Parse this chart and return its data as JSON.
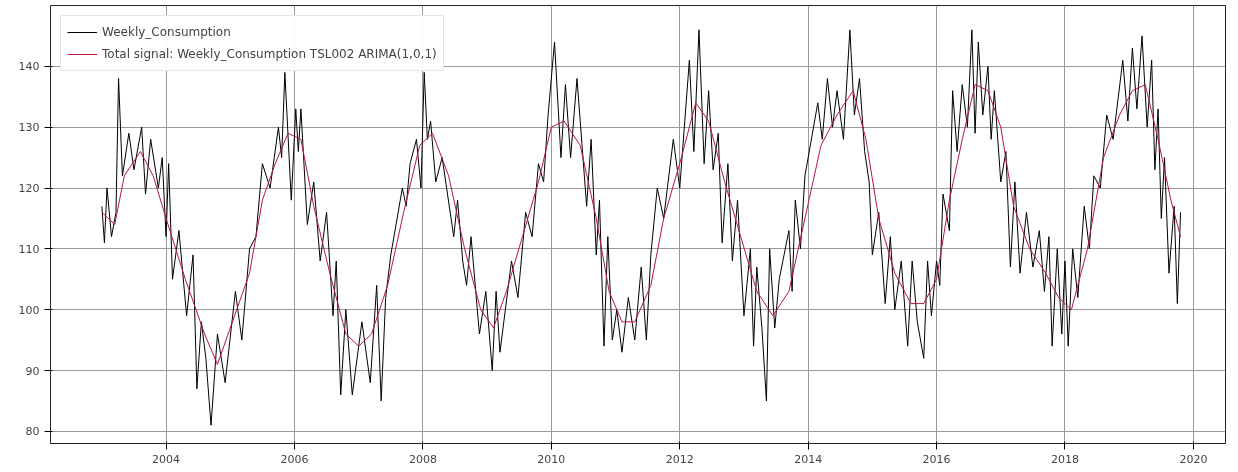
{
  "chart_data": {
    "type": "line",
    "xlim": [
      2002.2,
      2020.5
    ],
    "xticks": [
      2004,
      2006,
      2008,
      2010,
      2012,
      2014,
      2016,
      2018,
      2020
    ],
    "ylim": [
      78,
      150
    ],
    "yticks": [
      80,
      90,
      100,
      110,
      120,
      130,
      140
    ],
    "grid": true,
    "legend": "top left",
    "marker": "none",
    "line_style": "solid",
    "series": [
      {
        "name": "Weekly_Consumption",
        "color": "#000000",
        "x": [
          2003.0,
          2003.04,
          2003.08,
          2003.15,
          2003.22,
          2003.26,
          2003.32,
          2003.42,
          2003.5,
          2003.62,
          2003.68,
          2003.76,
          2003.88,
          2003.94,
          2004.0,
          2004.04,
          2004.1,
          2004.2,
          2004.32,
          2004.42,
          2004.48,
          2004.55,
          2004.62,
          2004.7,
          2004.8,
          2004.92,
          2005.08,
          2005.18,
          2005.3,
          2005.4,
          2005.5,
          2005.62,
          2005.75,
          2005.8,
          2005.85,
          2005.95,
          2006.02,
          2006.06,
          2006.1,
          2006.2,
          2006.3,
          2006.4,
          2006.5,
          2006.6,
          2006.65,
          2006.72,
          2006.8,
          2006.9,
          2007.05,
          2007.18,
          2007.28,
          2007.35,
          2007.42,
          2007.5,
          2007.68,
          2007.74,
          2007.8,
          2007.9,
          2007.97,
          2008.02,
          2008.07,
          2008.12,
          2008.2,
          2008.3,
          2008.48,
          2008.54,
          2008.62,
          2008.68,
          2008.75,
          2008.88,
          2008.98,
          2009.08,
          2009.14,
          2009.2,
          2009.38,
          2009.48,
          2009.6,
          2009.7,
          2009.8,
          2009.88,
          2009.95,
          2010.05,
          2010.15,
          2010.22,
          2010.3,
          2010.4,
          2010.55,
          2010.62,
          2010.7,
          2010.75,
          2010.82,
          2010.88,
          2010.95,
          2011.02,
          2011.1,
          2011.2,
          2011.3,
          2011.4,
          2011.48,
          2011.55,
          2011.65,
          2011.75,
          2011.9,
          2012.0,
          2012.15,
          2012.22,
          2012.3,
          2012.38,
          2012.45,
          2012.52,
          2012.6,
          2012.66,
          2012.75,
          2012.82,
          2012.9,
          2013.0,
          2013.1,
          2013.15,
          2013.2,
          2013.28,
          2013.35,
          2013.4,
          2013.48,
          2013.55,
          2013.7,
          2013.75,
          2013.8,
          2013.88,
          2013.95,
          2014.15,
          2014.22,
          2014.3,
          2014.38,
          2014.45,
          2014.55,
          2014.65,
          2014.72,
          2014.8,
          2014.88,
          2014.95,
          2015.0,
          2015.1,
          2015.2,
          2015.28,
          2015.35,
          2015.45,
          2015.55,
          2015.62,
          2015.7,
          2015.8,
          2015.86,
          2015.92,
          2016.0,
          2016.05,
          2016.1,
          2016.2,
          2016.25,
          2016.32,
          2016.4,
          2016.48,
          2016.55,
          2016.6,
          2016.65,
          2016.72,
          2016.8,
          2016.85,
          2016.9,
          2017.0,
          2017.08,
          2017.15,
          2017.22,
          2017.3,
          2017.4,
          2017.5,
          2017.6,
          2017.68,
          2017.75,
          2017.8,
          2017.88,
          2017.95,
          2018.0,
          2018.05,
          2018.12,
          2018.2,
          2018.3,
          2018.38,
          2018.45,
          2018.55,
          2018.65,
          2018.75,
          2018.9,
          2018.98,
          2019.05,
          2019.12,
          2019.2,
          2019.28,
          2019.35,
          2019.4,
          2019.45,
          2019.5,
          2019.55,
          2019.62,
          2019.7,
          2019.75,
          2019.8
        ],
        "values": [
          117,
          111,
          120,
          112,
          116,
          138,
          122,
          129,
          123,
          130,
          119,
          128,
          120,
          125,
          112,
          124,
          105,
          113,
          99,
          109,
          87,
          98,
          92,
          81,
          96,
          88,
          103,
          95,
          110,
          112,
          124,
          120,
          130,
          125,
          139,
          118,
          133,
          126,
          133,
          114,
          121,
          108,
          116,
          99,
          108,
          86,
          100,
          86,
          98,
          88,
          104,
          85,
          102,
          109,
          120,
          117,
          124,
          128,
          120,
          139,
          128,
          131,
          121,
          125,
          112,
          118,
          108,
          104,
          112,
          96,
          103,
          90,
          103,
          93,
          108,
          102,
          116,
          112,
          124,
          121,
          132,
          144,
          125,
          137,
          125,
          138,
          117,
          128,
          109,
          118,
          94,
          112,
          95,
          100,
          93,
          102,
          95,
          107,
          95,
          109,
          120,
          115,
          128,
          120,
          141,
          126,
          146,
          124,
          136,
          123,
          129,
          111,
          124,
          108,
          118,
          99,
          110,
          94,
          107,
          97,
          85,
          110,
          97,
          105,
          113,
          103,
          118,
          110,
          122,
          134,
          128,
          138,
          130,
          136,
          128,
          146,
          132,
          138,
          126,
          121,
          109,
          116,
          101,
          112,
          100,
          108,
          94,
          108,
          98,
          92,
          108,
          99,
          108,
          104,
          119,
          113,
          136,
          126,
          137,
          130,
          146,
          129,
          144,
          132,
          140,
          128,
          136,
          121,
          126,
          107,
          121,
          106,
          116,
          107,
          113,
          103,
          112,
          94,
          110,
          96,
          108,
          94,
          110,
          102,
          117,
          110,
          122,
          120,
          132,
          128,
          141,
          131,
          143,
          133,
          145,
          130,
          141,
          123,
          133,
          115,
          125,
          106,
          117,
          101,
          116
        ]
      },
      {
        "name": "Total signal: Weekly_Consumption TSL002 ARIMA(1,0,1)",
        "color": "#b8173a",
        "x": [
          2003.0,
          2003.2,
          2003.35,
          2003.6,
          2003.8,
          2004.0,
          2004.3,
          2004.6,
          2004.8,
          2005.0,
          2005.3,
          2005.5,
          2005.7,
          2005.9,
          2006.1,
          2006.3,
          2006.55,
          2006.8,
          2007.0,
          2007.2,
          2007.45,
          2007.7,
          2007.95,
          2008.15,
          2008.4,
          2008.65,
          2008.9,
          2009.1,
          2009.3,
          2009.55,
          2009.8,
          2010.0,
          2010.2,
          2010.45,
          2010.7,
          2010.9,
          2011.1,
          2011.3,
          2011.55,
          2011.75,
          2012.0,
          2012.25,
          2012.45,
          2012.7,
          2012.95,
          2013.2,
          2013.45,
          2013.7,
          2013.95,
          2014.2,
          2014.45,
          2014.7,
          2014.9,
          2015.1,
          2015.35,
          2015.6,
          2015.8,
          2016.0,
          2016.2,
          2016.4,
          2016.6,
          2016.8,
          2017.0,
          2017.2,
          2017.45,
          2017.7,
          2017.9,
          2018.1,
          2018.35,
          2018.6,
          2018.85,
          2019.05,
          2019.25,
          2019.45,
          2019.65,
          2019.8
        ],
        "values": [
          116,
          114,
          122,
          126,
          122,
          115,
          105,
          96,
          91,
          97,
          106,
          118,
          124,
          129,
          128,
          117,
          106,
          96,
          94,
          96,
          104,
          116,
          127,
          129,
          122,
          110,
          100,
          97,
          103,
          112,
          121,
          130,
          131,
          127,
          115,
          103,
          98,
          98,
          104,
          115,
          124,
          134,
          131,
          121,
          112,
          103,
          99,
          103,
          115,
          127,
          132,
          136,
          128,
          115,
          106,
          101,
          101,
          105,
          118,
          128,
          137,
          136,
          130,
          117,
          110,
          106,
          102,
          100,
          110,
          125,
          132,
          136,
          137,
          128,
          118,
          112
        ]
      }
    ]
  }
}
